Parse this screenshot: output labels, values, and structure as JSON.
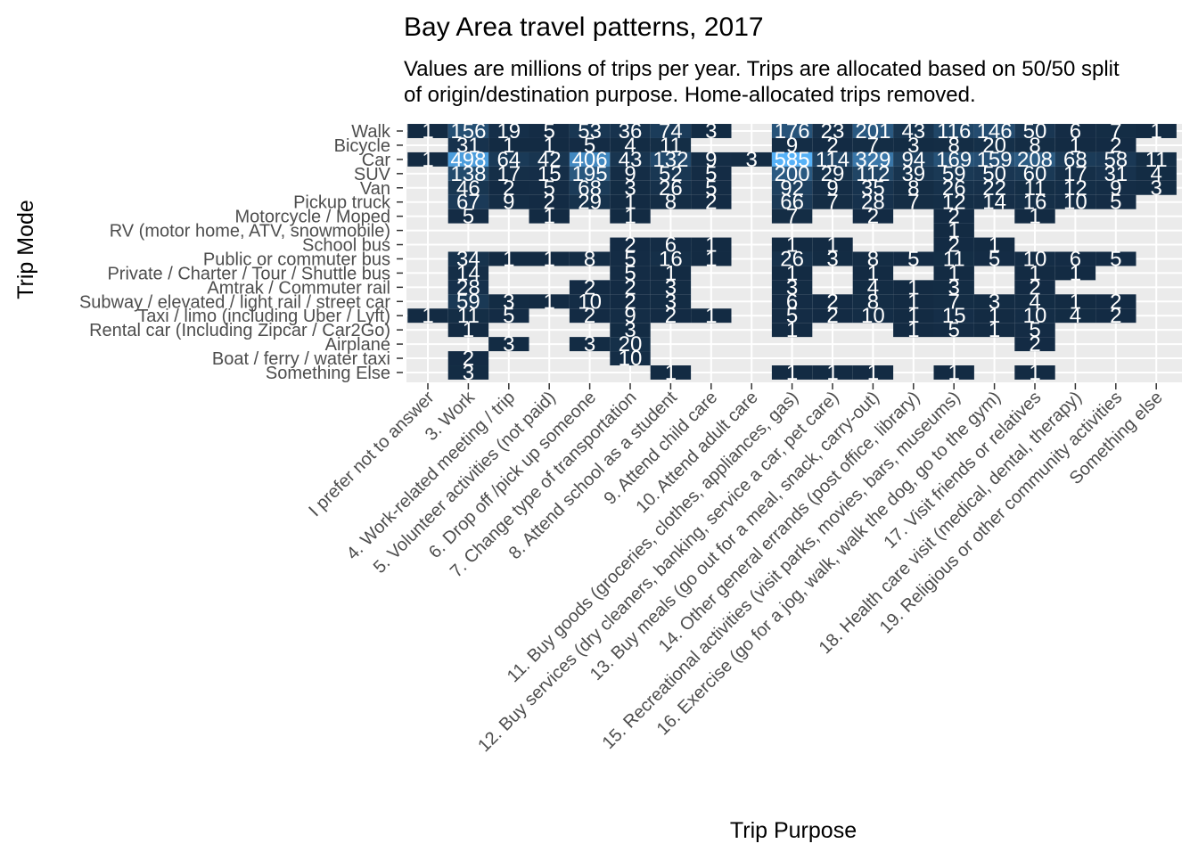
{
  "chart_data": {
    "type": "heatmap",
    "title": "Bay Area travel patterns, 2017",
    "subtitle_lines": [
      "Values are millions of trips per year. Trips are allocated based on 50/50 split",
      "of origin/destination purpose. Home-allocated trips removed."
    ],
    "xlabel": "Trip Purpose",
    "ylabel": "Trip Mode",
    "x": [
      "I prefer not to answer",
      "3. Work",
      "4. Work-related meeting / trip",
      "5. Volunteer activities (not paid)",
      "6. Drop off /pick up someone",
      "7. Change type of transportation",
      "8. Attend school as a student",
      "9. Attend child care",
      "10. Attend adult care",
      "11. Buy goods (groceries, clothes, appliances, gas)",
      "12. Buy services (dry cleaners, banking, service a car, pet care)",
      "13. Buy meals (go out for a meal, snack, carry-out)",
      "14. Other general errands (post office, library)",
      "15. Recreational activities (visit parks, movies, bars, museums)",
      "16. Exercise (go for a jog, walk, walk the dog, go to the gym)",
      "17. Visit friends or relatives",
      "18. Health care visit (medical, dental, therapy)",
      "19. Religious or other community activities",
      "Something else"
    ],
    "y": [
      "Walk",
      "Bicycle",
      "Car",
      "SUV",
      "Van",
      "Pickup truck",
      "Motorcycle / Moped",
      "RV (motor home, ATV, snowmobile)",
      "School bus",
      "Public or commuter bus",
      "Private / Charter / Tour / Shuttle bus",
      "Amtrak / Commuter rail",
      "Subway / elevated / light rail / street car",
      "Taxi / limo (including Uber / Lyft)",
      "Rental car (Including Zipcar / Car2Go)",
      "Airplane",
      "Boat / ferry / water taxi",
      "Something Else"
    ],
    "values": [
      [
        1,
        156,
        19,
        5,
        53,
        36,
        74,
        3,
        null,
        176,
        23,
        201,
        43,
        116,
        146,
        50,
        6,
        7,
        1
      ],
      [
        null,
        31,
        1,
        1,
        5,
        4,
        11,
        null,
        null,
        9,
        2,
        7,
        3,
        8,
        20,
        8,
        1,
        2,
        null
      ],
      [
        1,
        498,
        64,
        42,
        406,
        43,
        132,
        9,
        3,
        585,
        114,
        329,
        94,
        169,
        159,
        208,
        68,
        58,
        11
      ],
      [
        null,
        138,
        17,
        15,
        195,
        9,
        52,
        5,
        null,
        200,
        29,
        112,
        39,
        59,
        50,
        60,
        17,
        31,
        4
      ],
      [
        null,
        46,
        2,
        5,
        68,
        3,
        26,
        5,
        null,
        92,
        9,
        35,
        8,
        26,
        22,
        11,
        12,
        9,
        3
      ],
      [
        null,
        67,
        9,
        2,
        29,
        1,
        8,
        2,
        null,
        66,
        7,
        28,
        7,
        12,
        14,
        16,
        10,
        5,
        null
      ],
      [
        null,
        5,
        null,
        1,
        null,
        1,
        null,
        null,
        null,
        7,
        null,
        2,
        null,
        2,
        null,
        1,
        null,
        null,
        null
      ],
      [
        null,
        null,
        null,
        null,
        null,
        null,
        null,
        null,
        null,
        null,
        null,
        null,
        null,
        1,
        null,
        null,
        null,
        null,
        null
      ],
      [
        null,
        null,
        null,
        null,
        null,
        2,
        6,
        1,
        null,
        1,
        1,
        null,
        null,
        2,
        1,
        null,
        null,
        null,
        null
      ],
      [
        null,
        34,
        1,
        1,
        8,
        5,
        16,
        1,
        null,
        26,
        3,
        8,
        5,
        11,
        5,
        10,
        6,
        5,
        null
      ],
      [
        null,
        14,
        null,
        null,
        null,
        5,
        1,
        null,
        null,
        1,
        null,
        1,
        null,
        1,
        null,
        1,
        1,
        null,
        null
      ],
      [
        null,
        28,
        null,
        null,
        2,
        2,
        3,
        null,
        null,
        3,
        null,
        4,
        1,
        3,
        null,
        2,
        null,
        null,
        null
      ],
      [
        null,
        59,
        3,
        1,
        10,
        2,
        3,
        null,
        null,
        6,
        2,
        8,
        1,
        7,
        3,
        4,
        1,
        2,
        null
      ],
      [
        1,
        11,
        5,
        null,
        2,
        9,
        2,
        1,
        null,
        5,
        2,
        10,
        1,
        15,
        1,
        10,
        4,
        2,
        null
      ],
      [
        null,
        1,
        null,
        null,
        null,
        3,
        null,
        null,
        null,
        1,
        null,
        null,
        1,
        5,
        1,
        5,
        null,
        null,
        null
      ],
      [
        null,
        null,
        3,
        null,
        3,
        20,
        null,
        null,
        null,
        null,
        null,
        null,
        null,
        null,
        null,
        2,
        null,
        null,
        null
      ],
      [
        null,
        2,
        null,
        null,
        null,
        10,
        null,
        null,
        null,
        null,
        null,
        null,
        null,
        null,
        null,
        null,
        null,
        null,
        null
      ],
      [
        null,
        3,
        null,
        null,
        null,
        null,
        1,
        null,
        null,
        1,
        1,
        1,
        null,
        1,
        null,
        1,
        null,
        null,
        null
      ]
    ],
    "color_low": "#132b43",
    "color_high": "#56b1f7",
    "panel_background": "#ebebeb",
    "grid": true,
    "legend": "none"
  }
}
